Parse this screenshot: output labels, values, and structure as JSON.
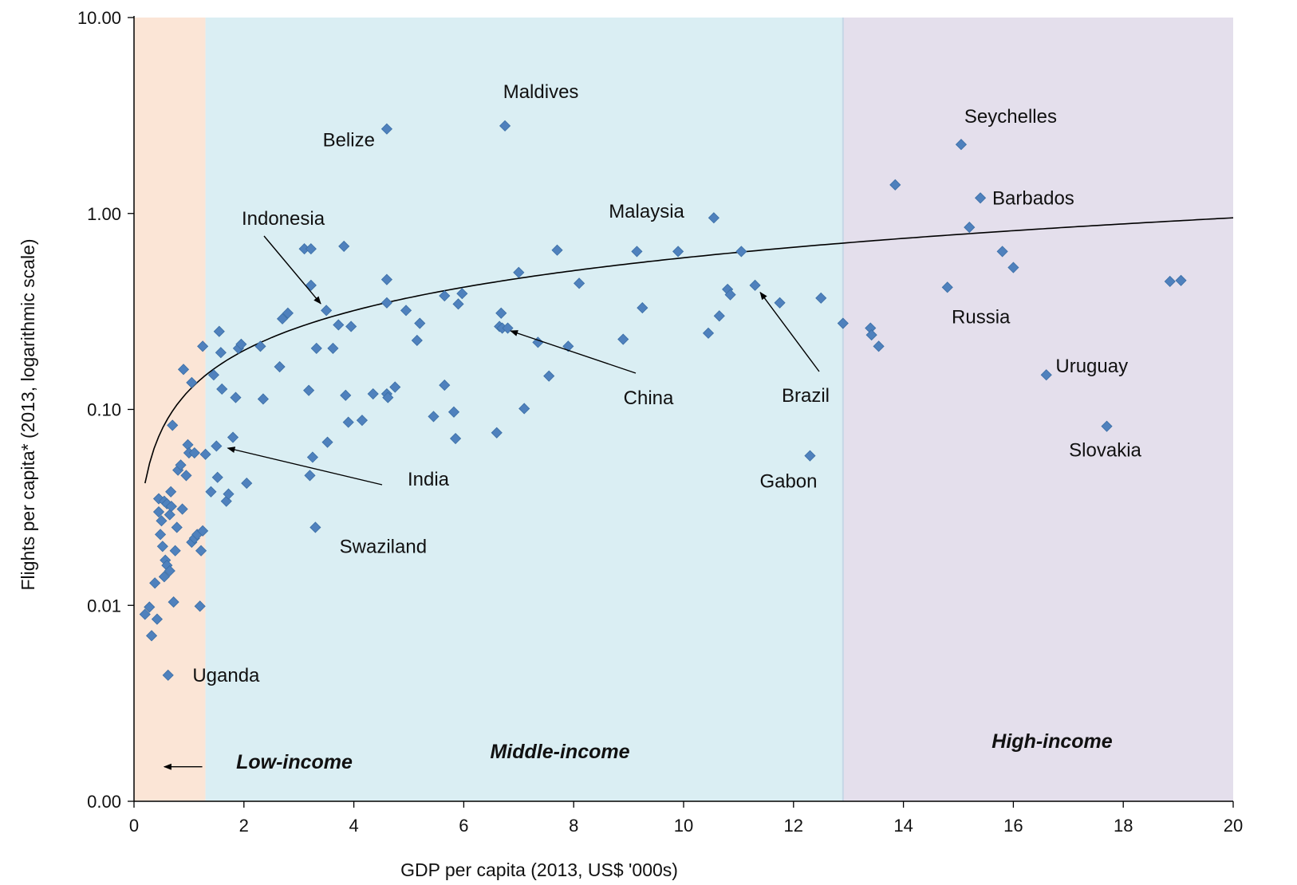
{
  "chart_data": {
    "type": "scatter",
    "xlabel": "GDP per capita (2013, US$ '000s)",
    "ylabel": "Flights per capita* (2013, logarithmic scale)",
    "xlim": [
      0,
      20
    ],
    "ylim": [
      0.001,
      10
    ],
    "y_scale": "log",
    "x_ticks": [
      0,
      2,
      4,
      6,
      8,
      10,
      12,
      14,
      16,
      18,
      20
    ],
    "x_tick_labels": [
      "0",
      "2",
      "4",
      "6",
      "8",
      "10",
      "12",
      "14",
      "16",
      "18",
      "20"
    ],
    "y_ticks": [
      0.001,
      0.01,
      0.1,
      1,
      10
    ],
    "y_tick_labels": [
      "0.00",
      "0.01",
      "0.10",
      "1.00",
      "10.00"
    ],
    "grid": false,
    "regions": [
      {
        "label": "Low-income",
        "x_range": [
          0,
          1.3
        ],
        "color": "#fbe5d6"
      },
      {
        "label": "Middle-income",
        "x_range": [
          1.3,
          12.9
        ],
        "color": "#daeef3"
      },
      {
        "label": "High-income",
        "x_range": [
          12.9,
          20
        ],
        "color": "#e4dfec"
      }
    ],
    "point_color": "#4f81bd",
    "trendline": {
      "type": "logarithmic",
      "x_range": [
        0.2,
        20
      ],
      "y_at_start": 0.042,
      "y_at_end": 0.95,
      "color": "#000000"
    },
    "annotations": [
      {
        "text": "Maldives",
        "point": [
          6.75,
          2.8
        ]
      },
      {
        "text": "Belize",
        "point": [
          4.6,
          2.7
        ]
      },
      {
        "text": "Seychelles",
        "point": [
          15.05,
          2.25
        ]
      },
      {
        "text": "Barbados",
        "point": [
          15.4,
          1.2
        ]
      },
      {
        "text": "Malaysia",
        "point": [
          10.55,
          0.95
        ]
      },
      {
        "text": "Indonesia",
        "point": [
          3.5,
          0.32
        ],
        "arrow": true
      },
      {
        "text": "Russia",
        "point": [
          14.8,
          0.42
        ]
      },
      {
        "text": "China",
        "point": [
          6.7,
          0.26
        ],
        "arrow": true
      },
      {
        "text": "Brazil",
        "point": [
          11.3,
          0.43
        ],
        "arrow": true
      },
      {
        "text": "Uruguay",
        "point": [
          16.6,
          0.15
        ]
      },
      {
        "text": "Slovakia",
        "point": [
          17.7,
          0.082
        ]
      },
      {
        "text": "India",
        "point": [
          1.55,
          0.065
        ],
        "arrow": true
      },
      {
        "text": "Gabon",
        "point": [
          12.3,
          0.058
        ]
      },
      {
        "text": "Swaziland",
        "point": [
          3.3,
          0.025
        ]
      },
      {
        "text": "Uganda",
        "point": [
          0.6,
          0.0044
        ]
      }
    ],
    "region_arrow": {
      "from_x": 1.3,
      "to_x": 0.55,
      "y": 0.0015
    },
    "points": [
      [
        0.2,
        0.009
      ],
      [
        0.28,
        0.0098
      ],
      [
        0.32,
        0.007
      ],
      [
        0.38,
        0.013
      ],
      [
        0.42,
        0.0085
      ],
      [
        0.45,
        0.035
      ],
      [
        0.45,
        0.03
      ],
      [
        0.48,
        0.023
      ],
      [
        0.5,
        0.027
      ],
      [
        0.52,
        0.02
      ],
      [
        0.55,
        0.034
      ],
      [
        0.55,
        0.014
      ],
      [
        0.57,
        0.017
      ],
      [
        0.6,
        0.033
      ],
      [
        0.6,
        0.016
      ],
      [
        0.62,
        0.0044
      ],
      [
        0.65,
        0.029
      ],
      [
        0.65,
        0.015
      ],
      [
        0.67,
        0.038
      ],
      [
        0.68,
        0.032
      ],
      [
        0.7,
        0.083
      ],
      [
        0.72,
        0.0104
      ],
      [
        0.75,
        0.019
      ],
      [
        0.78,
        0.025
      ],
      [
        0.8,
        0.049
      ],
      [
        0.85,
        0.052
      ],
      [
        0.88,
        0.031
      ],
      [
        0.9,
        0.16
      ],
      [
        0.95,
        0.046
      ],
      [
        0.98,
        0.066
      ],
      [
        1.0,
        0.06
      ],
      [
        1.05,
        0.137
      ],
      [
        1.05,
        0.021
      ],
      [
        1.1,
        0.06
      ],
      [
        1.1,
        0.022
      ],
      [
        1.15,
        0.023
      ],
      [
        1.2,
        0.0099
      ],
      [
        1.22,
        0.019
      ],
      [
        1.25,
        0.024
      ],
      [
        1.25,
        0.21
      ],
      [
        1.3,
        0.059
      ],
      [
        1.4,
        0.038
      ],
      [
        1.45,
        0.15
      ],
      [
        1.5,
        0.065
      ],
      [
        1.52,
        0.045
      ],
      [
        1.55,
        0.25
      ],
      [
        1.58,
        0.195
      ],
      [
        1.6,
        0.127
      ],
      [
        1.68,
        0.034
      ],
      [
        1.72,
        0.037
      ],
      [
        1.8,
        0.072
      ],
      [
        1.85,
        0.115
      ],
      [
        1.9,
        0.205
      ],
      [
        1.95,
        0.215
      ],
      [
        2.05,
        0.042
      ],
      [
        2.3,
        0.21
      ],
      [
        2.35,
        0.113
      ],
      [
        2.65,
        0.165
      ],
      [
        2.7,
        0.29
      ],
      [
        2.8,
        0.31
      ],
      [
        3.1,
        0.66
      ],
      [
        3.18,
        0.125
      ],
      [
        3.2,
        0.046
      ],
      [
        3.22,
        0.43
      ],
      [
        3.22,
        0.66
      ],
      [
        3.25,
        0.057
      ],
      [
        3.3,
        0.025
      ],
      [
        3.32,
        0.205
      ],
      [
        3.5,
        0.32
      ],
      [
        3.52,
        0.068
      ],
      [
        3.62,
        0.205
      ],
      [
        3.72,
        0.27
      ],
      [
        3.82,
        0.68
      ],
      [
        3.85,
        0.118
      ],
      [
        3.9,
        0.086
      ],
      [
        3.95,
        0.265
      ],
      [
        4.15,
        0.088
      ],
      [
        4.35,
        0.12
      ],
      [
        4.6,
        0.46
      ],
      [
        4.6,
        0.35
      ],
      [
        4.6,
        0.12
      ],
      [
        4.62,
        0.115
      ],
      [
        4.75,
        0.13
      ],
      [
        4.95,
        0.32
      ],
      [
        5.15,
        0.225
      ],
      [
        5.2,
        0.275
      ],
      [
        5.45,
        0.092
      ],
      [
        5.65,
        0.38
      ],
      [
        5.65,
        0.133
      ],
      [
        5.82,
        0.097
      ],
      [
        5.85,
        0.071
      ],
      [
        5.9,
        0.345
      ],
      [
        5.97,
        0.39
      ],
      [
        6.6,
        0.076
      ],
      [
        6.65,
        0.265
      ],
      [
        6.68,
        0.31
      ],
      [
        6.7,
        0.26
      ],
      [
        6.75,
        2.8
      ],
      [
        6.8,
        0.26
      ],
      [
        7.0,
        0.5
      ],
      [
        7.1,
        0.101
      ],
      [
        7.35,
        0.22
      ],
      [
        7.55,
        0.148
      ],
      [
        7.7,
        0.65
      ],
      [
        7.9,
        0.21
      ],
      [
        8.1,
        0.44
      ],
      [
        8.9,
        0.228
      ],
      [
        9.15,
        0.64
      ],
      [
        9.25,
        0.33
      ],
      [
        9.9,
        0.64
      ],
      [
        10.45,
        0.245
      ],
      [
        10.55,
        0.95
      ],
      [
        10.65,
        0.3
      ],
      [
        10.8,
        0.41
      ],
      [
        10.85,
        0.385
      ],
      [
        11.05,
        0.64
      ],
      [
        11.3,
        0.43
      ],
      [
        11.75,
        0.35
      ],
      [
        12.3,
        0.058
      ],
      [
        12.5,
        0.37
      ],
      [
        12.9,
        0.275
      ],
      [
        4.6,
        2.7
      ],
      [
        13.4,
        0.26
      ],
      [
        13.42,
        0.24
      ],
      [
        13.55,
        0.21
      ],
      [
        13.85,
        1.4
      ],
      [
        14.8,
        0.42
      ],
      [
        15.05,
        2.25
      ],
      [
        15.2,
        0.85
      ],
      [
        15.4,
        1.2
      ],
      [
        15.8,
        0.64
      ],
      [
        16.0,
        0.53
      ],
      [
        16.6,
        0.15
      ],
      [
        17.7,
        0.082
      ],
      [
        18.85,
        0.45
      ],
      [
        19.05,
        0.455
      ]
    ]
  }
}
